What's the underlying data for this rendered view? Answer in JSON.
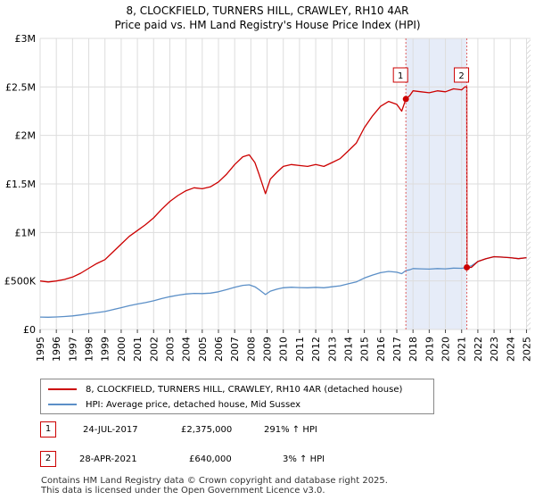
{
  "chart_data": {
    "type": "line",
    "title": "8, CLOCKFIELD, TURNERS HILL, CRAWLEY, RH10 4AR",
    "subtitle": "Price paid vs. HM Land Registry's House Price Index (HPI)",
    "xlabel": "",
    "ylabel": "",
    "xlim": [
      1995,
      2025.25
    ],
    "ylim": [
      0,
      3000000
    ],
    "x_ticks": [
      "1995",
      "1996",
      "1997",
      "1998",
      "1999",
      "2000",
      "2001",
      "2002",
      "2003",
      "2004",
      "2005",
      "2006",
      "2007",
      "2008",
      "2009",
      "2010",
      "2011",
      "2012",
      "2013",
      "2014",
      "2015",
      "2016",
      "2017",
      "2018",
      "2019",
      "2020",
      "2021",
      "2022",
      "2023",
      "2024",
      "2025"
    ],
    "y_ticks": [
      {
        "value": 0,
        "label": "£0"
      },
      {
        "value": 500000,
        "label": "£500K"
      },
      {
        "value": 1000000,
        "label": "£1M"
      },
      {
        "value": 1500000,
        "label": "£1.5M"
      },
      {
        "value": 2000000,
        "label": "£2M"
      },
      {
        "value": 2500000,
        "label": "£2.5M"
      },
      {
        "value": 3000000,
        "label": "£3M"
      }
    ],
    "grid": true,
    "series": [
      {
        "name": "8, CLOCKFIELD, TURNERS HILL, CRAWLEY, RH10 4AR (detached house)",
        "color": "#cc0000",
        "x": [
          1995.0,
          1995.5,
          1996.0,
          1996.5,
          1997.0,
          1997.5,
          1998.0,
          1998.5,
          1999.0,
          1999.5,
          2000.0,
          2000.5,
          2001.0,
          2001.5,
          2002.0,
          2002.5,
          2003.0,
          2003.5,
          2004.0,
          2004.5,
          2005.0,
          2005.5,
          2006.0,
          2006.5,
          2007.0,
          2007.5,
          2007.9,
          2008.25,
          2008.5,
          2008.9,
          2009.2,
          2009.6,
          2010.0,
          2010.5,
          2011.0,
          2011.5,
          2012.0,
          2012.5,
          2013.0,
          2013.5,
          2014.0,
          2014.5,
          2015.0,
          2015.5,
          2016.0,
          2016.5,
          2017.0,
          2017.3,
          2017.56,
          2017.8,
          2018.0,
          2018.5,
          2019.0,
          2019.5,
          2020.0,
          2020.5,
          2021.0,
          2021.2,
          2021.32,
          2021.33,
          2021.6,
          2022.0,
          2022.5,
          2023.0,
          2023.5,
          2024.0,
          2024.5,
          2025.0
        ],
        "y": [
          500000,
          490000,
          500000,
          515000,
          540000,
          580000,
          630000,
          680000,
          720000,
          800000,
          880000,
          960000,
          1020000,
          1080000,
          1150000,
          1240000,
          1320000,
          1380000,
          1430000,
          1460000,
          1450000,
          1470000,
          1520000,
          1600000,
          1700000,
          1780000,
          1800000,
          1720000,
          1600000,
          1400000,
          1550000,
          1620000,
          1680000,
          1700000,
          1690000,
          1680000,
          1700000,
          1680000,
          1720000,
          1760000,
          1840000,
          1920000,
          2080000,
          2200000,
          2300000,
          2350000,
          2320000,
          2250000,
          2375000,
          2410000,
          2460000,
          2450000,
          2440000,
          2460000,
          2450000,
          2480000,
          2470000,
          2500000,
          2500000,
          640000,
          640000,
          700000,
          730000,
          750000,
          745000,
          740000,
          730000,
          740000
        ]
      },
      {
        "name": "HPI: Average price, detached house, Mid Sussex",
        "color": "#5b8fc7",
        "x": [
          1995.0,
          1995.5,
          1996.0,
          1996.5,
          1997.0,
          1997.5,
          1998.0,
          1998.5,
          1999.0,
          1999.5,
          2000.0,
          2000.5,
          2001.0,
          2001.5,
          2002.0,
          2002.5,
          2003.0,
          2003.5,
          2004.0,
          2004.5,
          2005.0,
          2005.5,
          2006.0,
          2006.5,
          2007.0,
          2007.5,
          2007.9,
          2008.25,
          2008.5,
          2008.9,
          2009.2,
          2009.6,
          2010.0,
          2010.5,
          2011.0,
          2011.5,
          2012.0,
          2012.5,
          2013.0,
          2013.5,
          2014.0,
          2014.5,
          2015.0,
          2015.5,
          2016.0,
          2016.5,
          2017.0,
          2017.3,
          2017.56,
          2017.8,
          2018.0,
          2018.5,
          2019.0,
          2019.5,
          2020.0,
          2020.5,
          2021.0,
          2021.2,
          2021.32,
          2021.33,
          2021.6,
          2022.0,
          2022.5,
          2023.0,
          2023.5,
          2024.0,
          2024.5,
          2025.0
        ],
        "y": [
          128000,
          126000,
          129000,
          133000,
          140000,
          150000,
          162000,
          174000,
          185000,
          205000,
          225000,
          245000,
          262000,
          277000,
          295000,
          318000,
          338000,
          353000,
          365000,
          372000,
          370000,
          375000,
          388000,
          410000,
          435000,
          455000,
          460000,
          440000,
          410000,
          360000,
          395000,
          415000,
          430000,
          435000,
          432000,
          430000,
          434000,
          430000,
          440000,
          450000,
          470000,
          490000,
          530000,
          560000,
          585000,
          598000,
          590000,
          575000,
          607000,
          615000,
          628000,
          625000,
          622000,
          628000,
          625000,
          632000,
          630000,
          636000,
          639000,
          640000,
          655000,
          700000,
          730000,
          750000,
          745000,
          740000,
          730000,
          740000
        ]
      }
    ],
    "transactions": [
      {
        "id": "1",
        "date": "24-JUL-2017",
        "x": 2017.56,
        "price": "£2,375,000",
        "price_value": 2375000,
        "hpi": "291% ↑ HPI"
      },
      {
        "id": "2",
        "date": "28-APR-2021",
        "x": 2021.32,
        "price": "£640,000",
        "price_value": 640000,
        "hpi": "3% ↑ HPI"
      }
    ],
    "shaded_period": [
      2017.56,
      2021.32
    ],
    "hatched_after": 2025.0
  },
  "footer": {
    "line1": "Contains HM Land Registry data © Crown copyright and database right 2025.",
    "line2": "This data is licensed under the Open Government Licence v3.0."
  }
}
